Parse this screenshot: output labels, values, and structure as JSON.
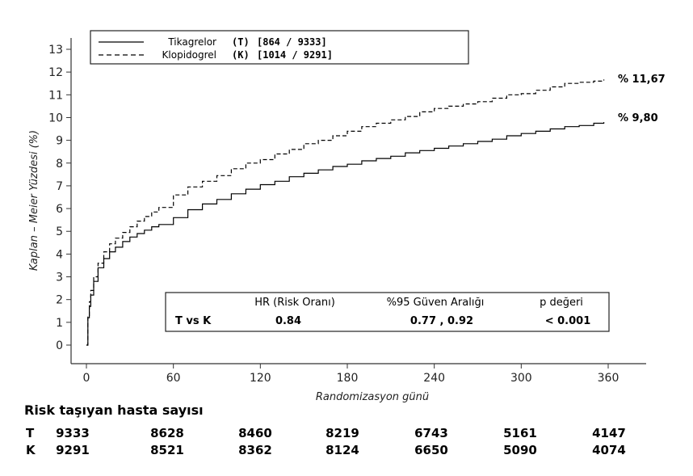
{
  "chart_data": {
    "type": "line",
    "title": "",
    "xlabel": "Randomizasyon günü",
    "ylabel": "Kaplan – Meier Yüzdesi (%)",
    "xlim": [
      0,
      360
    ],
    "ylim": [
      0,
      13
    ],
    "x_ticks": [
      0,
      60,
      120,
      180,
      240,
      300,
      360
    ],
    "y_ticks": [
      0,
      1,
      2,
      3,
      4,
      5,
      6,
      7,
      8,
      9,
      10,
      11,
      12,
      13
    ],
    "grid": false,
    "legend_position": "top-left",
    "legend": [
      {
        "name": "Tikagrelor",
        "code": "(T)",
        "counts": "[864 / 9333]",
        "style": "solid"
      },
      {
        "name": "Klopidogrel",
        "code": "(K)",
        "counts": "[1014 / 9291]",
        "style": "dashed"
      }
    ],
    "series": [
      {
        "name": "Tikagrelor",
        "style": "solid",
        "end_label": "% 9,80",
        "x": [
          0,
          1,
          2,
          3,
          5,
          8,
          12,
          16,
          20,
          25,
          30,
          35,
          40,
          45,
          50,
          60,
          70,
          80,
          90,
          100,
          110,
          120,
          130,
          140,
          150,
          160,
          170,
          180,
          190,
          200,
          210,
          220,
          230,
          240,
          250,
          260,
          270,
          280,
          290,
          300,
          310,
          320,
          330,
          340,
          350,
          357
        ],
        "y": [
          0,
          1.2,
          1.7,
          2.2,
          2.8,
          3.4,
          3.8,
          4.1,
          4.3,
          4.55,
          4.75,
          4.9,
          5.05,
          5.2,
          5.3,
          5.6,
          5.95,
          6.2,
          6.4,
          6.65,
          6.85,
          7.05,
          7.2,
          7.4,
          7.55,
          7.7,
          7.85,
          7.95,
          8.1,
          8.2,
          8.3,
          8.45,
          8.55,
          8.65,
          8.75,
          8.85,
          8.95,
          9.05,
          9.2,
          9.3,
          9.4,
          9.5,
          9.6,
          9.65,
          9.75,
          9.8
        ]
      },
      {
        "name": "Klopidogrel",
        "style": "dashed",
        "end_label": "% 11,67",
        "x": [
          0,
          1,
          2,
          3,
          5,
          8,
          12,
          16,
          20,
          25,
          30,
          35,
          40,
          45,
          50,
          60,
          70,
          80,
          90,
          100,
          110,
          120,
          130,
          140,
          150,
          160,
          170,
          180,
          190,
          200,
          210,
          220,
          230,
          240,
          250,
          260,
          270,
          280,
          290,
          300,
          310,
          320,
          330,
          340,
          350,
          357
        ],
        "y": [
          0,
          1.3,
          1.9,
          2.4,
          3.0,
          3.6,
          4.1,
          4.45,
          4.7,
          4.95,
          5.2,
          5.45,
          5.65,
          5.85,
          6.05,
          6.6,
          6.95,
          7.2,
          7.45,
          7.75,
          8.0,
          8.15,
          8.4,
          8.6,
          8.85,
          9.0,
          9.2,
          9.4,
          9.6,
          9.75,
          9.9,
          10.05,
          10.25,
          10.4,
          10.5,
          10.6,
          10.7,
          10.85,
          11.0,
          11.05,
          11.2,
          11.35,
          11.5,
          11.55,
          11.6,
          11.67
        ]
      }
    ],
    "stats_table": {
      "headers": [
        "HR (Risk Oranı)",
        "%95 Güven Aralığı",
        "p değeri"
      ],
      "row_label": "T vs K",
      "values": [
        "0.84",
        "0.77 , 0.92",
        "< 0.001"
      ]
    }
  },
  "risk_table": {
    "title": "Risk taşıyan hasta sayısı",
    "rows": [
      {
        "code": "T",
        "values": [
          "9333",
          "8628",
          "8460",
          "8219",
          "6743",
          "5161",
          "4147"
        ]
      },
      {
        "code": "K",
        "values": [
          "9291",
          "8521",
          "8362",
          "8124",
          "6650",
          "5090",
          "4074"
        ]
      }
    ]
  },
  "colors": {
    "line": "#000000",
    "axis": "#333333",
    "background": "#ffffff"
  }
}
